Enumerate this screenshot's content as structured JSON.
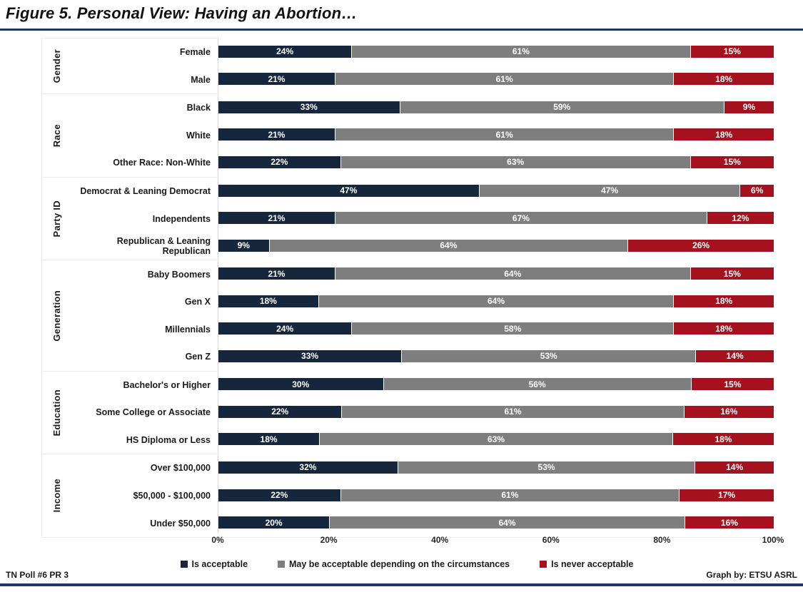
{
  "title": "Figure 5. Personal View: Having an Abortion…",
  "footer": {
    "left": "TN Poll #6 PR 3",
    "right": "Graph by: ETSU ASRL"
  },
  "colors": {
    "acceptable": "#16263C",
    "depends": "#7E7E7E",
    "never": "#A5121E",
    "rule_navy": "#1E3A5F"
  },
  "legend": {
    "items": [
      {
        "label": "Is acceptable",
        "color": "#16263C"
      },
      {
        "label": "May be acceptable depending on the circumstances",
        "color": "#7E7E7E"
      },
      {
        "label": "Is never acceptable",
        "color": "#A5121E"
      }
    ]
  },
  "chart_data": {
    "type": "bar",
    "orientation": "horizontal-stacked",
    "title": "Figure 5. Personal View: Having an Abortion…",
    "xlabel": "",
    "ylabel": "",
    "xlim": [
      0,
      100
    ],
    "x_ticks": [
      "0%",
      "20%",
      "40%",
      "60%",
      "80%",
      "100%"
    ],
    "legend_position": "bottom",
    "series_names": [
      "Is acceptable",
      "May be acceptable depending on the circumstances",
      "Is never acceptable"
    ],
    "value_suffix": "%",
    "groups": [
      {
        "label": "Gender",
        "rows": [
          {
            "category": "Female",
            "values": [
              24,
              61,
              15
            ]
          },
          {
            "category": "Male",
            "values": [
              21,
              61,
              18
            ]
          }
        ]
      },
      {
        "label": "Race",
        "rows": [
          {
            "category": "Black",
            "values": [
              33,
              59,
              9
            ]
          },
          {
            "category": "White",
            "values": [
              21,
              61,
              18
            ]
          },
          {
            "category": "Other Race: Non-White",
            "values": [
              22,
              63,
              15
            ]
          }
        ]
      },
      {
        "label": "Party ID",
        "rows": [
          {
            "category": "Democrat & Leaning Democrat",
            "values": [
              47,
              47,
              6
            ]
          },
          {
            "category": "Independents",
            "values": [
              21,
              67,
              12
            ]
          },
          {
            "category": "Republican & Leaning Republican",
            "values": [
              9,
              64,
              26
            ]
          }
        ]
      },
      {
        "label": "Generation",
        "rows": [
          {
            "category": "Baby Boomers",
            "values": [
              21,
              64,
              15
            ]
          },
          {
            "category": "Gen X",
            "values": [
              18,
              64,
              18
            ]
          },
          {
            "category": "Millennials",
            "values": [
              24,
              58,
              18
            ]
          },
          {
            "category": "Gen Z",
            "values": [
              33,
              53,
              14
            ]
          }
        ]
      },
      {
        "label": "Education",
        "rows": [
          {
            "category": "Bachelor's or Higher",
            "values": [
              30,
              56,
              15
            ]
          },
          {
            "category": "Some College or Associate",
            "values": [
              22,
              61,
              16
            ]
          },
          {
            "category": "HS Diploma or Less",
            "values": [
              18,
              63,
              18
            ]
          }
        ]
      },
      {
        "label": "Income",
        "rows": [
          {
            "category": "Over $100,000",
            "values": [
              32,
              53,
              14
            ]
          },
          {
            "category": "$50,000 - $100,000",
            "values": [
              22,
              61,
              17
            ]
          },
          {
            "category": "Under $50,000",
            "values": [
              20,
              64,
              16
            ]
          }
        ]
      }
    ]
  }
}
